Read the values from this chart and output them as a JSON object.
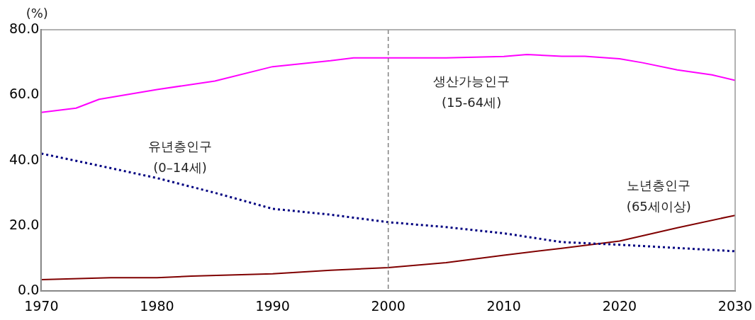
{
  "chart_data": {
    "type": "line",
    "ylabel": "(%)",
    "xlim": [
      1970,
      2030
    ],
    "xticks": [
      1970,
      1980,
      1990,
      2000,
      2010,
      2020,
      2030
    ],
    "ylim": [
      0,
      80
    ],
    "yticks": [
      {
        "value": 0,
        "label": "0.0"
      },
      {
        "value": 20,
        "label": "20.0"
      },
      {
        "value": 40,
        "label": "40.0"
      },
      {
        "value": 60,
        "label": "60.0"
      },
      {
        "value": 80,
        "label": "80.0"
      }
    ],
    "grid": false,
    "legend": false,
    "marker": "none",
    "ref_lines": [
      {
        "axis": "x",
        "value": 2000,
        "color": "#808080",
        "line_style": "dashed"
      }
    ],
    "series": [
      {
        "name": "생산가능인구\n(15-64세)",
        "color": "#ff00ff",
        "line_style": "solid",
        "x": [
          1970,
          1973,
          1975,
          1980,
          1985,
          1990,
          1995,
          1997,
          2000,
          2005,
          2010,
          2012,
          2015,
          2017,
          2020,
          2022,
          2025,
          2028,
          2030
        ],
        "values": [
          54.7,
          56.0,
          58.7,
          61.7,
          64.3,
          68.7,
          70.5,
          71.4,
          71.4,
          71.4,
          71.8,
          72.4,
          71.9,
          71.9,
          71.1,
          69.9,
          67.7,
          66.2,
          64.5
        ]
      },
      {
        "name": "유년층인구\n(0–14세)",
        "color": "#000080",
        "line_style": "dotted",
        "x": [
          1970,
          1975,
          1980,
          1985,
          1990,
          1995,
          2000,
          2005,
          2010,
          2015,
          2020,
          2025,
          2030
        ],
        "values": [
          42.1,
          38.4,
          34.6,
          30.1,
          25.2,
          23.4,
          21.1,
          19.6,
          17.7,
          15.0,
          14.2,
          13.2,
          12.2
        ]
      },
      {
        "name": "노년층인구\n(65세이상)",
        "color": "#800000",
        "line_style": "solid",
        "x": [
          1970,
          1976,
          1980,
          1983,
          1990,
          1995,
          2000,
          2005,
          2010,
          2015,
          2020,
          2025,
          2030
        ],
        "values": [
          3.5,
          4.1,
          4.1,
          4.6,
          5.3,
          6.4,
          7.2,
          8.7,
          11.0,
          13.1,
          15.3,
          19.4,
          23.2
        ]
      }
    ]
  }
}
